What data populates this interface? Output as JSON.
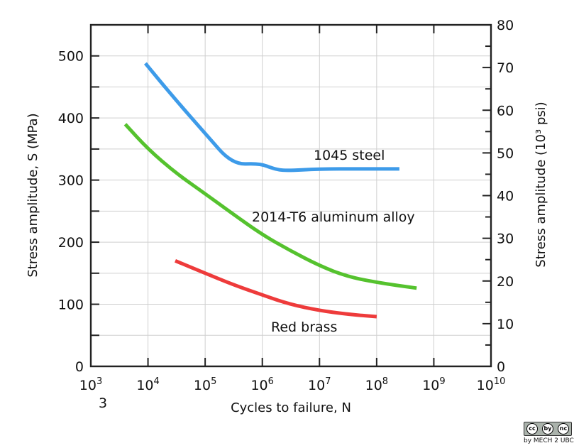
{
  "chart_data": {
    "type": "line",
    "x_scale": "log",
    "xlim": [
      1000,
      10000000000
    ],
    "ylim": [
      0,
      550
    ],
    "y2lim": [
      0,
      80
    ],
    "x_ticks": [
      {
        "value": 1000,
        "base": "10",
        "exp": "3"
      },
      {
        "value": 10000,
        "base": "10",
        "exp": "4"
      },
      {
        "value": 100000,
        "base": "10",
        "exp": "5"
      },
      {
        "value": 1000000,
        "base": "10",
        "exp": "6"
      },
      {
        "value": 10000000,
        "base": "10",
        "exp": "7"
      },
      {
        "value": 100000000,
        "base": "10",
        "exp": "8"
      },
      {
        "value": 1000000000,
        "base": "10",
        "exp": "9"
      },
      {
        "value": 10000000000,
        "base": "10",
        "exp": "10"
      }
    ],
    "x_extra_label": "3",
    "y_ticks": [
      0,
      100,
      200,
      300,
      400,
      500
    ],
    "y2_ticks": [
      0,
      10,
      20,
      30,
      40,
      50,
      60,
      70,
      80
    ],
    "xlabel": "Cycles to failure, N",
    "ylabel": "Stress amplitude, S (MPa)",
    "y2label": "Stress amplitude (10³ psi)",
    "grid": true,
    "series": [
      {
        "name": "1045 steel",
        "color": "#3d9be9",
        "x": [
          9000,
          30000,
          100000,
          300000,
          900000,
          1600000,
          2500000,
          10000000,
          50000000,
          250000000
        ],
        "y": [
          488,
          430,
          375,
          325,
          327,
          318,
          315,
          318,
          318,
          318
        ]
      },
      {
        "name": "2014-T6 aluminum alloy",
        "color": "#55c22e",
        "x": [
          4000,
          10000,
          30000,
          100000,
          300000,
          1000000,
          3000000,
          10000000,
          30000000,
          100000000,
          500000000
        ],
        "y": [
          390,
          350,
          312,
          278,
          246,
          212,
          187,
          162,
          145,
          135,
          126
        ]
      },
      {
        "name": "Red brass",
        "color": "#ee3b3b",
        "x": [
          30000,
          100000,
          300000,
          1000000,
          3000000,
          10000000,
          30000000,
          100000000
        ],
        "y": [
          170,
          150,
          132,
          115,
          100,
          90,
          84,
          80
        ]
      }
    ]
  },
  "license": {
    "badge": [
      "cc",
      "by",
      "nc"
    ],
    "credit": "by MECH 2 UBC"
  }
}
